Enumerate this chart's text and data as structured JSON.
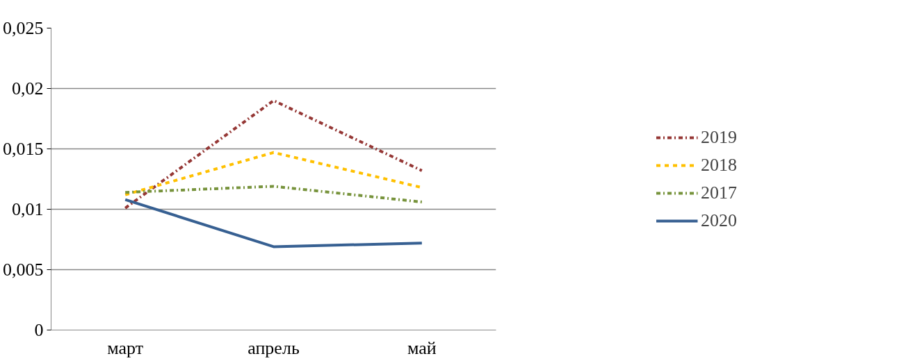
{
  "chart_data": {
    "type": "line",
    "categories": [
      "март",
      "апрель",
      "май"
    ],
    "series": [
      {
        "name": "2019",
        "color": "#953735",
        "line_style": "dashdot",
        "values": [
          0.0101,
          0.019,
          0.0132
        ]
      },
      {
        "name": "2018",
        "color": "#ffc000",
        "line_style": "dashed",
        "values": [
          0.0112,
          0.0147,
          0.0118
        ]
      },
      {
        "name": "2017",
        "color": "#77933c",
        "line_style": "dashdot",
        "values": [
          0.0114,
          0.0119,
          0.0106
        ]
      },
      {
        "name": "2020",
        "color": "#376092",
        "line_style": "solid",
        "values": [
          0.0108,
          0.0069,
          0.0072
        ]
      }
    ],
    "ylim": [
      0,
      0.025
    ],
    "yticks": [
      {
        "value": 0,
        "label": "0"
      },
      {
        "value": 0.005,
        "label": "0,005"
      },
      {
        "value": 0.01,
        "label": "0,01"
      },
      {
        "value": 0.015,
        "label": "0,015"
      },
      {
        "value": 0.02,
        "label": "0,02"
      },
      {
        "value": 0.025,
        "label": "0,025"
      }
    ],
    "grid": "y",
    "legend": "right",
    "marker": "none"
  }
}
